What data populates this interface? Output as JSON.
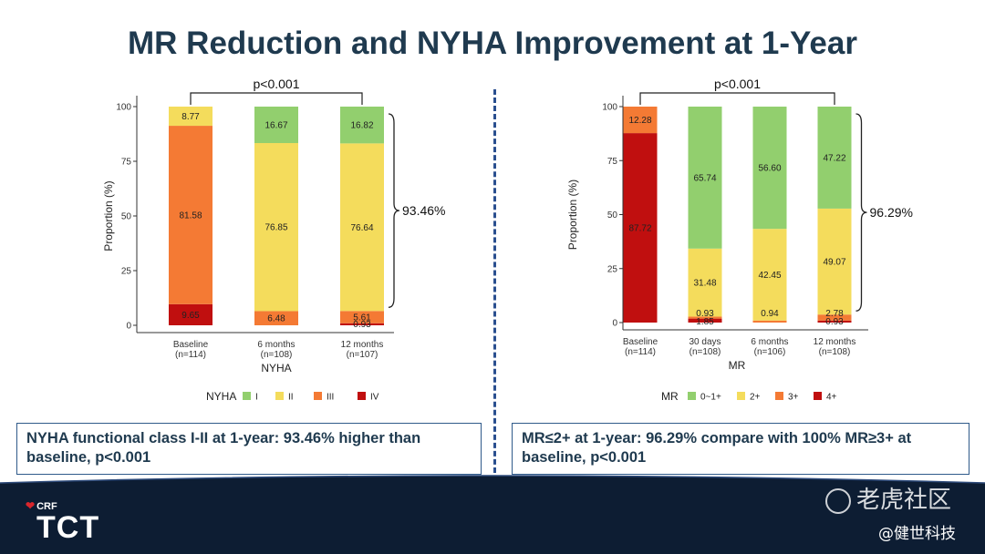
{
  "slide": {
    "title": "MR Reduction and NYHA Improvement at 1-Year",
    "left_note": "NYHA functional class  I-II at 1-year: 93.46% higher than baseline, p<0.001",
    "right_note": "MR≤2+ at 1-year: 96.29% compare with 100% MR≥3+ at baseline, p<0.001",
    "logo_crf": "CRF",
    "logo_tct": "TCT",
    "watermark_top": "老虎社区",
    "watermark_bottom": "@健世科技",
    "colors": {
      "title": "#1f3a4f",
      "box_border": "#2f5a8a",
      "footer": "#0d1d33",
      "divider": "#2a4f8f"
    }
  },
  "chart_data": [
    {
      "type": "bar",
      "stacked": true,
      "xlabel": "NYHA",
      "ylabel": "Proportion (%)",
      "ylim": [
        0,
        100
      ],
      "yticks": [
        "0",
        "25",
        "50",
        "75",
        "100"
      ],
      "categories": [
        "Baseline\n(n=114)",
        "6 months\n(n=108)",
        "12 months\n(n=107)"
      ],
      "legend_title": "NYHA",
      "legend_position": "bottom",
      "series": [
        {
          "name": "IV",
          "color": "#c00f0f",
          "values": [
            9.65,
            0,
            0.93
          ],
          "labels": [
            "9.65",
            "",
            "0.93"
          ]
        },
        {
          "name": "III",
          "color": "#f47a34",
          "values": [
            81.58,
            6.48,
            5.61
          ],
          "labels": [
            "81.58",
            "6.48",
            "5.61"
          ]
        },
        {
          "name": "II",
          "color": "#f4dc5c",
          "values": [
            8.77,
            76.85,
            76.64
          ],
          "labels": [
            "8.77",
            "76.85",
            "76.64"
          ]
        },
        {
          "name": "I",
          "color": "#92cf6e",
          "values": [
            0,
            16.67,
            16.82
          ],
          "labels": [
            "",
            "16.67",
            "16.82"
          ]
        }
      ],
      "annotations": {
        "pvalue": "p<0.001",
        "pvalue_between": [
          0,
          2
        ],
        "brace_label": "93.46%",
        "brace_category": 2,
        "brace_range": [
          6.54,
          100
        ]
      }
    },
    {
      "type": "bar",
      "stacked": true,
      "xlabel": "MR",
      "ylabel": "Proportion (%)",
      "ylim": [
        0,
        100
      ],
      "yticks": [
        "0",
        "25",
        "50",
        "75",
        "100"
      ],
      "categories": [
        "Baseline\n(n=114)",
        "30 days\n(n=108)",
        "6 months\n(n=106)",
        "12 months\n(n=108)"
      ],
      "legend_title": "MR",
      "legend_position": "bottom",
      "series": [
        {
          "name": "4+",
          "color": "#c00f0f",
          "values": [
            87.72,
            1.85,
            0,
            0.93
          ],
          "labels": [
            "87.72",
            "1.85",
            "",
            "0.93"
          ]
        },
        {
          "name": "3+",
          "color": "#f47a34",
          "values": [
            12.28,
            0.93,
            0.94,
            2.78
          ],
          "labels": [
            "12.28",
            "0.93",
            "0.94",
            "2.78"
          ]
        },
        {
          "name": "2+",
          "color": "#f4dc5c",
          "values": [
            0,
            31.48,
            42.45,
            49.07
          ],
          "labels": [
            "",
            "31.48",
            "42.45",
            "49.07"
          ]
        },
        {
          "name": "0~1+",
          "color": "#92cf6e",
          "values": [
            0,
            65.74,
            56.6,
            47.22
          ],
          "labels": [
            "",
            "65.74",
            "56.60",
            "47.22"
          ]
        }
      ],
      "annotations": {
        "pvalue": "p<0.001",
        "pvalue_between": [
          0,
          3
        ],
        "brace_label": "96.29%",
        "brace_category": 3,
        "brace_range": [
          3.71,
          100
        ]
      }
    }
  ]
}
